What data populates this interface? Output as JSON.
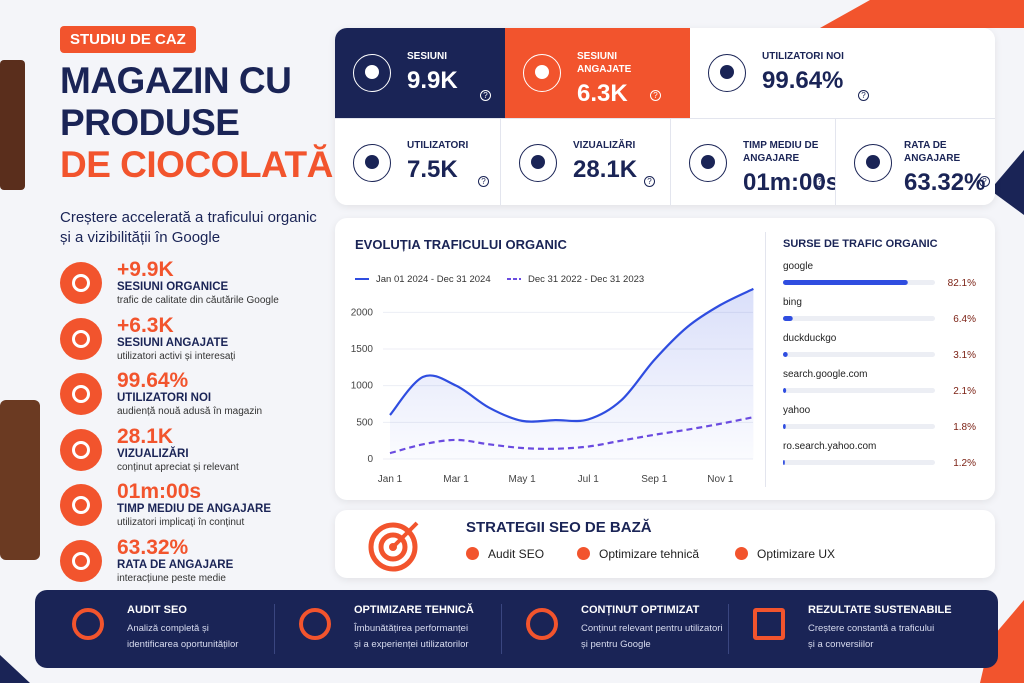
{
  "header": {
    "badge": "STUDIU DE CAZ",
    "title_lines": [
      "MAGAZIN CU",
      "PRODUSE",
      "DE CIOCOLATĂ"
    ],
    "subtitle": "Creștere accelerată a traficului organic și a vizibilității în Google"
  },
  "highlights": [
    {
      "value": "+9.9K",
      "label": "SESIUNI ORGANICE",
      "desc": "trafic de calitate din căutările Google"
    },
    {
      "value": "+6.3K",
      "label": "SESIUNI ANGAJATE",
      "desc": "utilizatori activi și interesați"
    },
    {
      "value": "99.64%",
      "label": "UTILIZATORI NOI",
      "desc": "audiență nouă adusă în magazin"
    },
    {
      "value": "28.1K",
      "label": "VIZUALIZĂRI",
      "desc": "conținut apreciat și relevant"
    },
    {
      "value": "01m:00s",
      "label": "TIMP MEDIU DE ANGAJARE",
      "desc": "utilizatori implicați în conținut"
    },
    {
      "value": "63.32%",
      "label": "RATA DE ANGAJARE",
      "desc": "interacțiune peste medie"
    }
  ],
  "kpis": [
    {
      "label": "SESIUNI",
      "value": "9.9K"
    },
    {
      "label": "SESIUNI ANGAJATE",
      "value": "6.3K"
    },
    {
      "label": "UTILIZATORI NOI",
      "value": "99.64%"
    },
    {
      "label": "UTILIZATORI",
      "value": "7.5K"
    },
    {
      "label": "VIZUALIZĂRI",
      "value": "28.1K"
    },
    {
      "label": "TIMP MEDIU DE ANGAJARE",
      "value": "01m:00s"
    },
    {
      "label": "RATA DE ANGAJARE",
      "value": "63.32%"
    }
  ],
  "chart_data": [
    {
      "type": "line",
      "title": "EVOLUȚIA TRAFICULUI ORGANIC",
      "categories": [
        "Jan 1",
        null,
        "Mar 1",
        null,
        "May 1",
        null,
        "Jul 1",
        null,
        "Sep 1",
        null,
        "Nov 1",
        null
      ],
      "series": [
        {
          "name": "Jan 01 2024 - Dec 31 2024",
          "color": "#2f4de0",
          "values": [
            600,
            1120,
            1000,
            700,
            520,
            530,
            540,
            800,
            1350,
            1800,
            2100,
            2320
          ]
        },
        {
          "name": "Dec 31 2022 - Dec 31 2023",
          "color": "#6a4be0",
          "dashed": true,
          "values": [
            80,
            200,
            260,
            200,
            150,
            140,
            170,
            250,
            330,
            400,
            480,
            570
          ]
        }
      ],
      "ylim": [
        0,
        2400
      ],
      "yticks": [
        0,
        500,
        1000,
        1500,
        2000
      ],
      "grid": true
    },
    {
      "type": "bar",
      "orientation": "horizontal",
      "title": "SURSE DE TRAFIC ORGANIC",
      "categories": [
        "google",
        "bing",
        "duckduckgo",
        "search.google.com",
        "yahoo",
        "ro.search.yahoo.com"
      ],
      "values": [
        82.1,
        6.4,
        3.1,
        2.1,
        1.8,
        1.2
      ],
      "value_labels": [
        "82.1%",
        "6.4%",
        "3.1%",
        "2.1%",
        "1.8%",
        "1.2%"
      ],
      "xlim": [
        0,
        100
      ],
      "color": "#2f4de0"
    }
  ],
  "strategy": {
    "title": "STRATEGII SEO DE BAZĂ",
    "items": [
      "Audit SEO",
      "Optimizare tehnică",
      "Optimizare UX"
    ]
  },
  "footer": [
    {
      "title": "AUDIT SEO",
      "desc": [
        "Analiză completă și",
        "identificarea oportunităților"
      ]
    },
    {
      "title": "OPTIMIZARE TEHNICĂ",
      "desc": [
        "Îmbunătățirea performanței",
        "și a experienței utilizatorilor"
      ]
    },
    {
      "title": "CONȚINUT OPTIMIZAT",
      "desc": [
        "Conținut relevant pentru utilizatori",
        "și pentru Google"
      ]
    },
    {
      "title": "REZULTATE SUSTENABILE",
      "desc": [
        "Creștere constantă a traficului",
        "și a conversiilor"
      ]
    }
  ]
}
